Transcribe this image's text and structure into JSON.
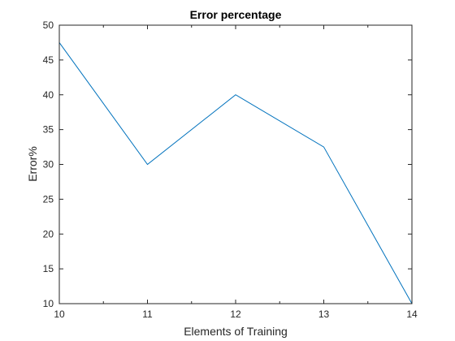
{
  "chart_data": {
    "type": "line",
    "title": "Error percentage",
    "xlabel": "Elements of Training",
    "ylabel": "Error%",
    "x": [
      10,
      11,
      12,
      13,
      14
    ],
    "series": [
      {
        "name": "Error%",
        "values": [
          47.5,
          30,
          40,
          32.5,
          10
        ],
        "color": "#0072BD"
      }
    ],
    "xlim": [
      10,
      14
    ],
    "ylim": [
      10,
      50
    ],
    "xticks": [
      10,
      11,
      12,
      13,
      14
    ],
    "xtick_labels": [
      "10",
      "11",
      "12",
      "13",
      "14"
    ],
    "yticks": [
      10,
      15,
      20,
      25,
      30,
      35,
      40,
      45,
      50
    ],
    "ytick_labels": [
      "10",
      "15",
      "20",
      "25",
      "30",
      "35",
      "40",
      "45",
      "50"
    ],
    "grid": false,
    "box": true
  }
}
